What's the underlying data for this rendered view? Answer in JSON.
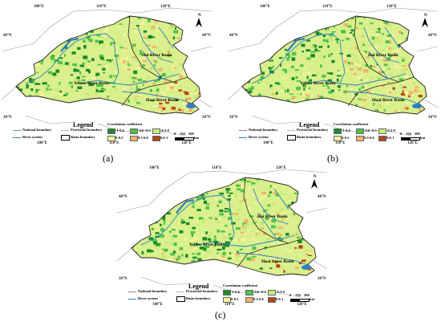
{
  "panels": [
    {
      "id": "a",
      "label": "(a)"
    },
    {
      "id": "b",
      "label": "(b)"
    },
    {
      "id": "c",
      "label": "(c)"
    }
  ],
  "lon_labels": {
    "l100": "100°E",
    "l110": "110°E",
    "l120": "120°E"
  },
  "lat_labels": {
    "n40": "40°N",
    "n30": "30°N"
  },
  "basins": {
    "hai": "Hai River Basin",
    "yellow": "Yellow River Basin",
    "huai": "Huai River Basin"
  },
  "legend": {
    "title": "Legend",
    "national": "National boundary",
    "provincial": "Provincial boundary",
    "river": "River system",
    "basin": "Basin boundary",
    "cc_title": "Correlation coefficient",
    "classes": [
      {
        "label": "-1-0.6",
        "color": "#1a8a2a"
      },
      {
        "label": "-0.6--0.3",
        "color": "#4fc34a"
      },
      {
        "label": "-0.3-0",
        "color": "#c8ec7a"
      },
      {
        "label": "0-0.3",
        "color": "#f5f2a0"
      },
      {
        "label": "0.3-0.6",
        "color": "#f2b26a"
      },
      {
        "label": "0.6-1",
        "color": "#b5451b"
      }
    ],
    "scale": {
      "zero": "0",
      "mid": "150",
      "max": "300",
      "unit": "km"
    },
    "north": "N"
  },
  "colors": {
    "water": "#2e7fc2",
    "border": "#9a9a9a",
    "basin_outline": "#222222"
  }
}
